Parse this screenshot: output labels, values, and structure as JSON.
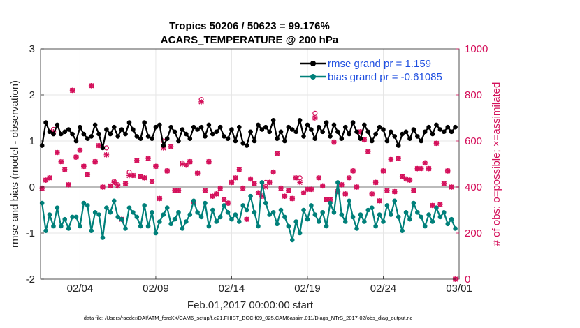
{
  "chart_data": {
    "type": "line",
    "title": "Tropics 50206 / 50623 = 99.176%",
    "subtitle": "ACARS_TEMPERATURE @ 200 hPa",
    "xlabel": "Feb.01,2017 00:00:00 start",
    "ylabel": "rmse and bias (model - observation)",
    "ylabel_right": "# of obs: o=possible; ×=assimilated",
    "footer": "data file: /Users/raeder/DAI/ATM_forcXX/CAM6_setup/f.e21.FHIST_BGC.f09_025.CAM6assim.011/Diags_NTrS_2017-02/obs_diag_output.nc",
    "x_ticks": [
      {
        "day": 4,
        "label": "02/04"
      },
      {
        "day": 9,
        "label": "02/09"
      },
      {
        "day": 14,
        "label": "02/14"
      },
      {
        "day": 19,
        "label": "02/19"
      },
      {
        "day": 24,
        "label": "02/24"
      },
      {
        "day": 29,
        "label": "03/01"
      }
    ],
    "xlim": [
      1.4,
      29.0
    ],
    "ylim": [
      -2,
      3
    ],
    "y_ticks": [
      "-2",
      "-1",
      "0",
      "1",
      "2",
      "3"
    ],
    "ylim_right": [
      0,
      1000
    ],
    "y_ticks_right": [
      "0",
      "200",
      "400",
      "600",
      "800",
      "1000"
    ],
    "grid": true,
    "legend_position": "top-right",
    "colors": {
      "rmse": "#000000",
      "bias": "#00807a",
      "obs": "#d40f5a",
      "zero_line": "#bbbbbb",
      "legend_text": "#1f4fe0"
    },
    "series": [
      {
        "name": "rmse grand pr = 1.159",
        "color": "#000000",
        "x": [
          1.5,
          1.75,
          2.0,
          2.25,
          2.5,
          2.75,
          3.0,
          3.25,
          3.5,
          3.75,
          4.0,
          4.25,
          4.5,
          4.75,
          5.0,
          5.25,
          5.5,
          5.75,
          6.0,
          6.25,
          6.5,
          6.75,
          7.0,
          7.25,
          7.5,
          7.75,
          8.0,
          8.25,
          8.5,
          8.75,
          9.0,
          9.25,
          9.5,
          9.75,
          10.0,
          10.25,
          10.5,
          10.75,
          11.0,
          11.25,
          11.5,
          11.75,
          12.0,
          12.25,
          12.5,
          12.75,
          13.0,
          13.25,
          13.5,
          13.75,
          14.0,
          14.25,
          14.5,
          14.75,
          15.0,
          15.25,
          15.5,
          15.75,
          16.0,
          16.25,
          16.5,
          16.75,
          17.0,
          17.25,
          17.5,
          17.75,
          18.0,
          18.25,
          18.5,
          18.75,
          19.0,
          19.25,
          19.5,
          19.75,
          20.0,
          20.25,
          20.5,
          20.75,
          21.0,
          21.25,
          21.5,
          21.75,
          22.0,
          22.25,
          22.5,
          22.75,
          23.0,
          23.25,
          23.5,
          23.75,
          24.0,
          24.25,
          24.5,
          24.75,
          25.0,
          25.25,
          25.5,
          25.75,
          26.0,
          26.25,
          26.5,
          26.75,
          27.0,
          27.25,
          27.5,
          27.75,
          28.0,
          28.25,
          28.5,
          28.75
        ],
        "values": [
          0.9,
          1.4,
          1.2,
          1.15,
          1.35,
          1.15,
          1.2,
          1.25,
          1.15,
          1.0,
          1.3,
          1.15,
          1.05,
          1.1,
          1.35,
          1.15,
          0.85,
          1.25,
          1.15,
          1.3,
          1.1,
          1.25,
          1.15,
          1.4,
          1.25,
          1.1,
          1.05,
          1.4,
          1.1,
          1.05,
          1.3,
          1.35,
          0.9,
          1.05,
          1.3,
          1.2,
          1.0,
          1.25,
          1.15,
          1.05,
          1.3,
          1.25,
          1.3,
          1.1,
          1.35,
          1.15,
          1.2,
          1.3,
          1.1,
          1.05,
          1.25,
          1.0,
          1.3,
          0.95,
          0.9,
          1.2,
          1.0,
          1.35,
          1.25,
          1.3,
          1.2,
          1.45,
          1.05,
          1.2,
          1.0,
          1.3,
          1.25,
          1.2,
          1.45,
          1.1,
          1.35,
          1.25,
          1.05,
          1.3,
          1.2,
          1.4,
          1.1,
          1.35,
          1.2,
          1.05,
          1.3,
          1.15,
          1.4,
          1.2,
          1.05,
          1.35,
          1.2,
          1.0,
          1.15,
          1.3,
          1.25,
          1.0,
          1.2,
          1.1,
          0.9,
          1.15,
          1.2,
          1.05,
          1.25,
          1.1,
          1.0,
          1.2,
          1.3,
          1.15,
          1.35,
          1.25,
          1.2,
          1.3,
          1.2,
          1.3
        ]
      },
      {
        "name": "bias grand pr = -0.61085",
        "color": "#00807a",
        "x": [
          1.5,
          1.75,
          2.0,
          2.25,
          2.5,
          2.75,
          3.0,
          3.25,
          3.5,
          3.75,
          4.0,
          4.25,
          4.5,
          4.75,
          5.0,
          5.25,
          5.5,
          5.75,
          6.0,
          6.25,
          6.5,
          6.75,
          7.0,
          7.25,
          7.5,
          7.75,
          8.0,
          8.25,
          8.5,
          8.75,
          9.0,
          9.25,
          9.5,
          9.75,
          10.0,
          10.25,
          10.5,
          10.75,
          11.0,
          11.25,
          11.5,
          11.75,
          12.0,
          12.25,
          12.5,
          12.75,
          13.0,
          13.25,
          13.5,
          13.75,
          14.0,
          14.25,
          14.5,
          14.75,
          15.0,
          15.25,
          15.5,
          15.75,
          16.0,
          16.25,
          16.5,
          16.75,
          17.0,
          17.25,
          17.5,
          17.75,
          18.0,
          18.25,
          18.5,
          18.75,
          19.0,
          19.25,
          19.5,
          19.75,
          20.0,
          20.25,
          20.5,
          20.75,
          21.0,
          21.25,
          21.5,
          21.75,
          22.0,
          22.25,
          22.5,
          22.75,
          23.0,
          23.25,
          23.5,
          23.75,
          24.0,
          24.25,
          24.5,
          24.75,
          25.0,
          25.25,
          25.5,
          25.75,
          26.0,
          26.25,
          26.5,
          26.75,
          27.0,
          27.25,
          27.5,
          27.75,
          28.0,
          28.25,
          28.5,
          28.75
        ],
        "values": [
          -0.35,
          -0.95,
          -0.6,
          -0.85,
          -0.45,
          -0.85,
          -0.7,
          -0.9,
          -0.65,
          -0.65,
          -0.85,
          -0.35,
          -0.4,
          -0.95,
          -0.55,
          -0.6,
          -1.1,
          -0.45,
          -0.55,
          -0.3,
          -0.65,
          -0.7,
          -0.9,
          -0.45,
          -0.55,
          -0.65,
          -0.85,
          -0.4,
          -0.85,
          -0.55,
          -1.0,
          -0.75,
          -0.6,
          -0.45,
          -0.8,
          -0.7,
          -0.55,
          -0.9,
          -0.75,
          -0.6,
          -0.3,
          -0.55,
          -0.65,
          -0.35,
          -0.85,
          -0.5,
          -0.75,
          -0.65,
          -0.4,
          -0.55,
          -0.7,
          -0.6,
          -0.75,
          -0.4,
          -0.5,
          -0.2,
          -0.55,
          -0.85,
          0.1,
          -0.35,
          -0.6,
          -0.55,
          -0.8,
          -0.5,
          -0.65,
          -0.85,
          -1.15,
          -0.75,
          -1.0,
          -0.5,
          -0.7,
          -0.4,
          -0.6,
          -0.75,
          -0.55,
          -0.85,
          -0.35,
          -0.55,
          0.1,
          -0.6,
          -0.75,
          -0.3,
          -0.65,
          -0.9,
          -0.6,
          -0.75,
          -0.5,
          -0.45,
          -0.85,
          -0.6,
          -0.75,
          -0.4,
          -0.6,
          -0.3,
          -0.65,
          -0.95,
          -0.55,
          -0.7,
          -0.35,
          -0.55,
          -0.65,
          -0.85,
          -0.6,
          -0.75,
          -0.45,
          -0.65,
          -0.55,
          -0.8,
          -0.7,
          -0.9
        ]
      },
      {
        "name": "# of obs possible",
        "axis": "right",
        "marker": "o",
        "color": "#d40f5a",
        "x": [
          1.5,
          1.75,
          2.0,
          2.25,
          2.5,
          2.75,
          3.0,
          3.25,
          3.5,
          3.75,
          4.0,
          4.25,
          4.5,
          4.75,
          5.0,
          5.25,
          5.5,
          5.75,
          6.0,
          6.25,
          6.5,
          6.75,
          7.0,
          7.25,
          7.5,
          7.75,
          8.0,
          8.25,
          8.5,
          8.75,
          9.0,
          9.25,
          9.5,
          9.75,
          10.0,
          10.25,
          10.5,
          10.75,
          11.0,
          11.25,
          11.5,
          11.75,
          12.0,
          12.25,
          12.5,
          12.75,
          13.0,
          13.25,
          13.5,
          13.75,
          14.0,
          14.25,
          14.5,
          14.75,
          15.0,
          15.25,
          15.5,
          15.75,
          16.0,
          16.25,
          16.5,
          16.75,
          17.0,
          17.25,
          17.5,
          17.75,
          18.0,
          18.25,
          18.5,
          18.75,
          19.0,
          19.25,
          19.5,
          19.75,
          20.0,
          20.25,
          20.5,
          20.75,
          21.0,
          21.25,
          21.5,
          21.75,
          22.0,
          22.25,
          22.5,
          22.75,
          23.0,
          23.25,
          23.5,
          23.75,
          24.0,
          24.25,
          24.5,
          24.75,
          25.0,
          25.25,
          25.5,
          25.75,
          26.0,
          26.25,
          26.5,
          26.75,
          27.0,
          27.25,
          27.5,
          27.75,
          28.0,
          28.25,
          28.5,
          28.75
        ],
        "values": [
          395,
          430,
          440,
          650,
          550,
          510,
          475,
          410,
          820,
          530,
          560,
          490,
          455,
          840,
          510,
          580,
          400,
          570,
          405,
          425,
          410,
          260,
          415,
          465,
          450,
          515,
          445,
          440,
          525,
          425,
          490,
          350,
          600,
          470,
          575,
          385,
          385,
          505,
          495,
          510,
          335,
          460,
          780,
          385,
          510,
          360,
          370,
          395,
          345,
          330,
          420,
          440,
          475,
          395,
          260,
          435,
          415,
          375,
          365,
          420,
          420,
          465,
          545,
          395,
          360,
          385,
          350,
          440,
          440,
          375,
          390,
          390,
          720,
          440,
          405,
          345,
          345,
          595,
          380,
          410,
          370,
          440,
          470,
          400,
          640,
          605,
          555,
          370,
          420,
          340,
          470,
          385,
          520,
          380,
          525,
          445,
          435,
          430,
          385,
          480,
          480,
          505,
          480,
          320,
          590,
          325,
          415,
          470,
          400,
          0
        ]
      },
      {
        "name": "# of obs assimilated",
        "axis": "right",
        "marker": "x",
        "color": "#d40f5a",
        "x": [
          1.5,
          1.75,
          2.0,
          2.25,
          2.5,
          2.75,
          3.0,
          3.25,
          3.5,
          3.75,
          4.0,
          4.25,
          4.5,
          4.75,
          5.0,
          5.25,
          5.5,
          5.75,
          6.0,
          6.25,
          6.5,
          6.75,
          7.0,
          7.25,
          7.5,
          7.75,
          8.0,
          8.25,
          8.5,
          8.75,
          9.0,
          9.25,
          9.5,
          9.75,
          10.0,
          10.25,
          10.5,
          10.75,
          11.0,
          11.25,
          11.5,
          11.75,
          12.0,
          12.25,
          12.5,
          12.75,
          13.0,
          13.25,
          13.5,
          13.75,
          14.0,
          14.25,
          14.5,
          14.75,
          15.0,
          15.25,
          15.5,
          15.75,
          16.0,
          16.25,
          16.5,
          16.75,
          17.0,
          17.25,
          17.5,
          17.75,
          18.0,
          18.25,
          18.5,
          18.75,
          19.0,
          19.25,
          19.5,
          19.75,
          20.0,
          20.25,
          20.5,
          20.75,
          21.0,
          21.25,
          21.5,
          21.75,
          22.0,
          22.25,
          22.5,
          22.75,
          23.0,
          23.25,
          23.5,
          23.75,
          24.0,
          24.25,
          24.5,
          24.75,
          25.0,
          25.25,
          25.5,
          25.75,
          26.0,
          26.25,
          26.5,
          26.75,
          27.0,
          27.25,
          27.5,
          27.75,
          28.0,
          28.25,
          28.5,
          28.75
        ],
        "values": [
          395,
          430,
          440,
          640,
          550,
          510,
          475,
          410,
          820,
          530,
          560,
          490,
          455,
          840,
          510,
          580,
          400,
          540,
          405,
          420,
          405,
          260,
          415,
          450,
          450,
          515,
          445,
          440,
          525,
          425,
          490,
          350,
          570,
          470,
          575,
          385,
          385,
          500,
          495,
          510,
          335,
          460,
          770,
          385,
          510,
          360,
          370,
          395,
          345,
          330,
          420,
          440,
          475,
          395,
          260,
          435,
          415,
          375,
          360,
          400,
          420,
          465,
          545,
          395,
          360,
          385,
          350,
          440,
          420,
          375,
          390,
          390,
          700,
          440,
          405,
          345,
          345,
          595,
          380,
          410,
          370,
          440,
          470,
          400,
          640,
          605,
          555,
          370,
          420,
          340,
          470,
          385,
          520,
          380,
          525,
          445,
          435,
          430,
          385,
          480,
          480,
          505,
          480,
          320,
          590,
          325,
          415,
          470,
          400,
          0
        ]
      }
    ]
  }
}
